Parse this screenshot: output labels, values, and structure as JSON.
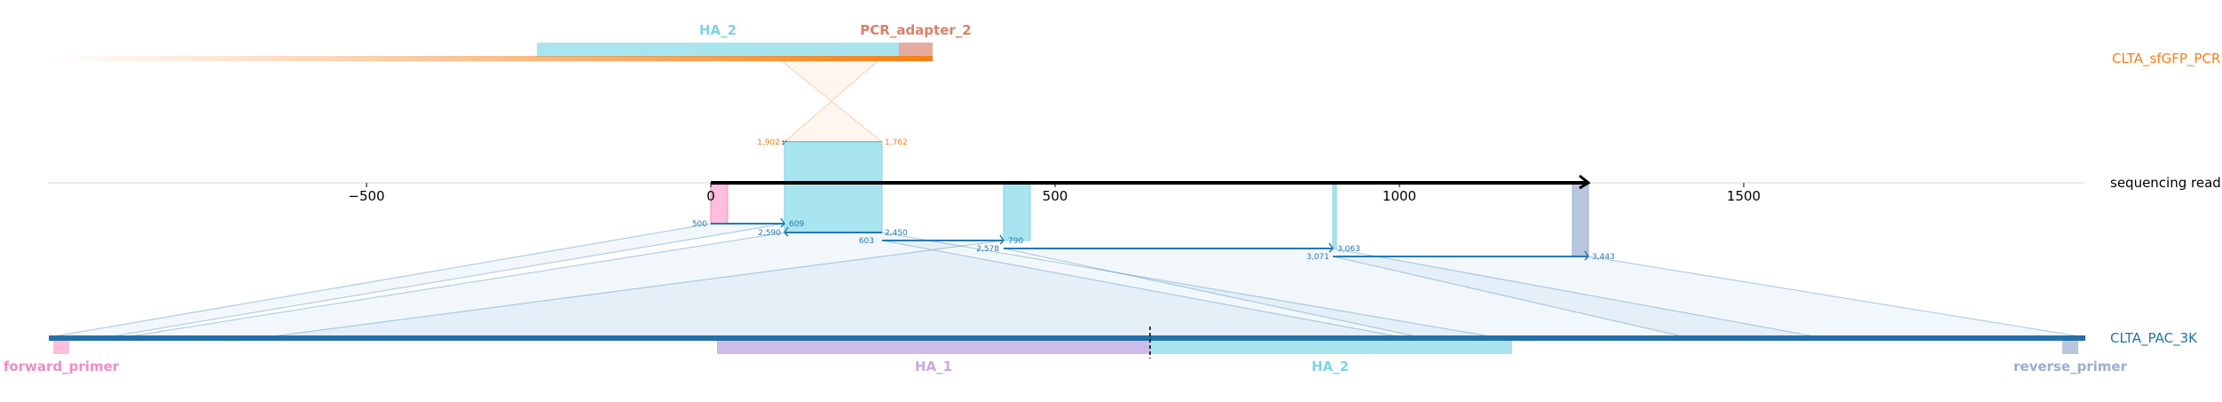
{
  "colors": {
    "pcr_amplicon": "#f57f17",
    "read": "#000000",
    "target": "#2471a8",
    "alignment": "#2479b8",
    "HA_2": "#7fd3e6",
    "HA_2_fill": "#a9e5ef",
    "HA_1": "#c8a8e0",
    "HA_1_fill": "#cdbbe9",
    "PCR_adapter_2": "#d9806a",
    "PCR_adapter_2_fill": "#e4ab9e",
    "forward_primer": "#ef8dc2",
    "forward_primer_fill": "#ffbedc",
    "reverse_primer": "#9aaed1",
    "reverse_primer_fill": "#b8c6e0",
    "axis": "#d6d6d6"
  },
  "references": {
    "pcr": "CLTA_sfGFP_PCR",
    "read": "sequencing read",
    "target": "CLTA_PAC_3K"
  },
  "read_axis": {
    "ticks": [
      {
        "value": -500,
        "label": "−500"
      },
      {
        "value": 0,
        "label": "0"
      },
      {
        "value": 500,
        "label": "500"
      },
      {
        "value": 1000,
        "label": "1000"
      },
      {
        "value": 1500,
        "label": "1500"
      }
    ]
  },
  "features": {
    "pcr": [
      {
        "name": "HA_2",
        "label": "HA_2"
      },
      {
        "name": "PCR_adapter_2",
        "label": "PCR_adapter_2"
      }
    ],
    "target": [
      {
        "name": "forward_primer",
        "label": "forward_primer"
      },
      {
        "name": "HA_1",
        "label": "HA_1"
      },
      {
        "name": "HA_2",
        "label": "HA_2"
      },
      {
        "name": "reverse_primer",
        "label": "reverse_primer"
      }
    ]
  },
  "pcr_alignment": {
    "read_start": 104,
    "read_end": 245,
    "ref_start": "1,902",
    "ref_end": "1,762"
  },
  "target_alignments": [
    {
      "read_start": 0,
      "read_end": 104,
      "ref_start": "500",
      "ref_end": "609"
    },
    {
      "read_start": 104,
      "read_end": 245,
      "ref_start": "2,590",
      "ref_end": "2,450"
    },
    {
      "read_start": 245,
      "read_end": 420,
      "ref_start": "603",
      "ref_end": "790"
    },
    {
      "read_start": 420,
      "read_end": 900,
      "ref_start": "2,578",
      "ref_end": "3,063"
    },
    {
      "read_start": 900,
      "read_end": 1272,
      "ref_start": "3,071",
      "ref_end": "3,443"
    }
  ]
}
